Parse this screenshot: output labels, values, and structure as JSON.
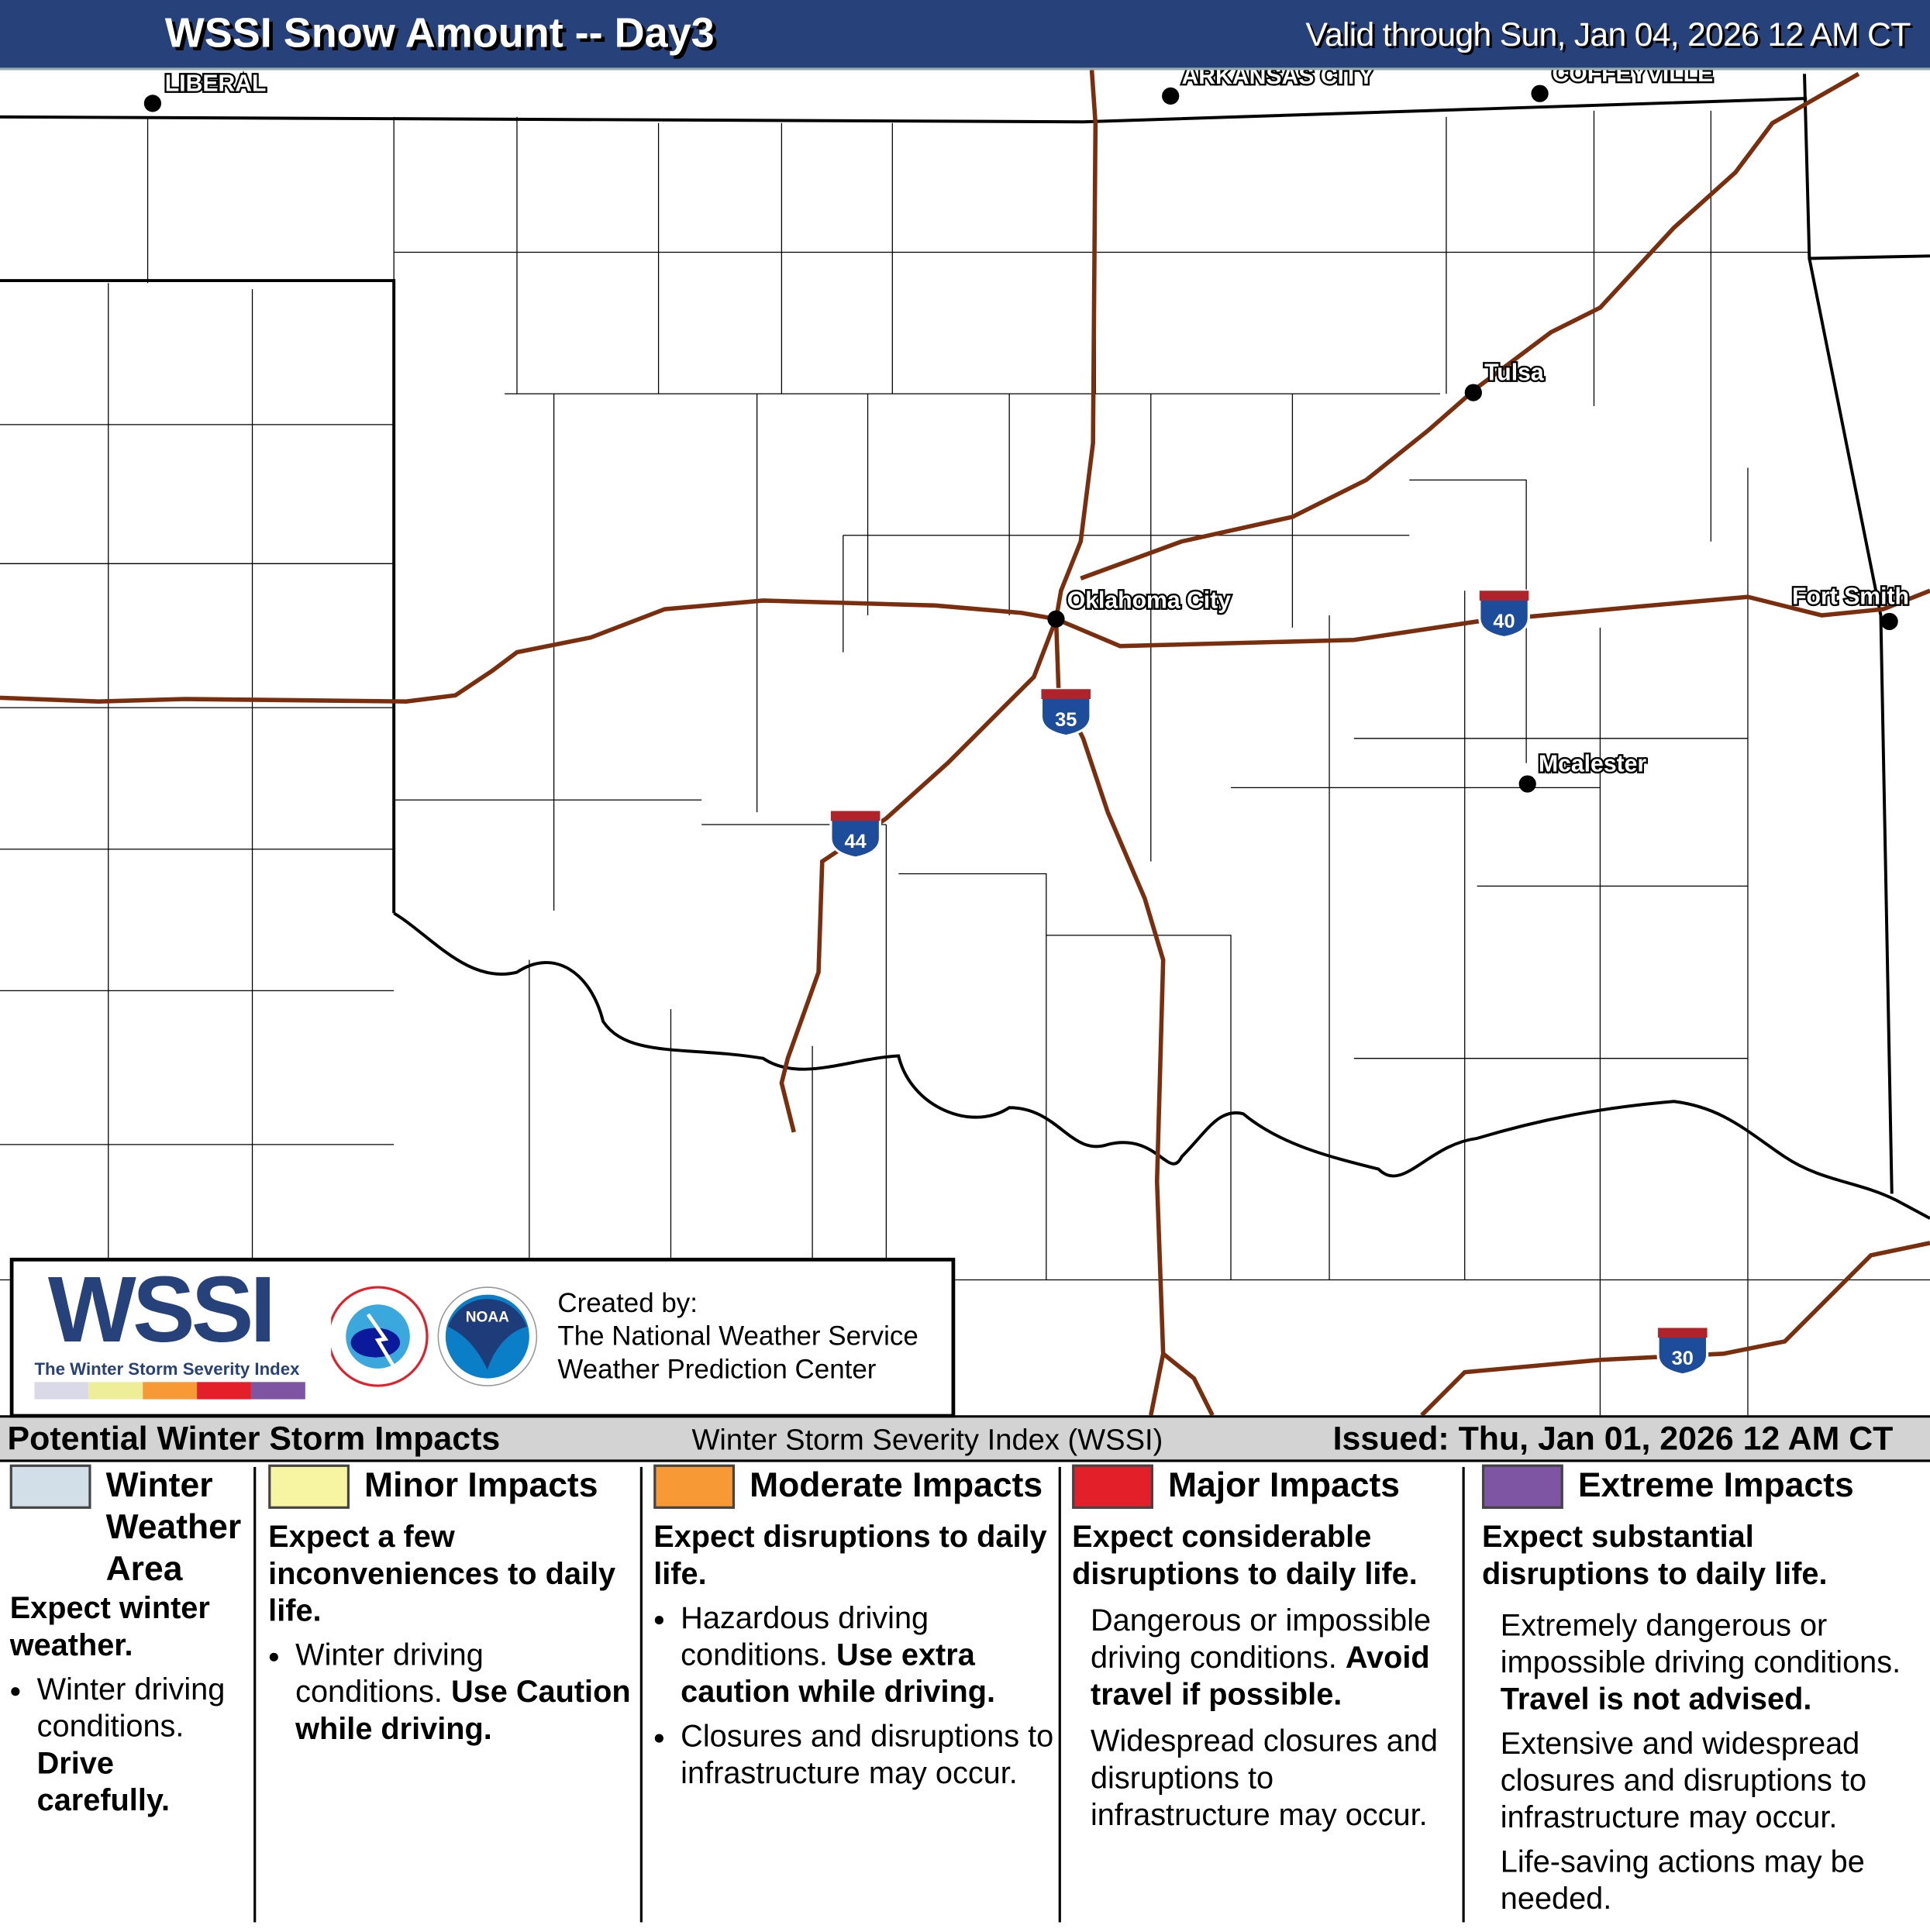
{
  "header": {
    "title": "WSSI Snow Amount -- Day3",
    "valid": "Valid through Sun, Jan 04, 2026 12 AM CT"
  },
  "map": {
    "cities": [
      "LIBERAL",
      "ARKANSAS CITY",
      "COFFEYVILLE",
      "Tulsa",
      "Oklahoma City",
      "Fort Smith",
      "Mcalester"
    ],
    "interstates": [
      "40",
      "35",
      "44",
      "30"
    ],
    "colors": {
      "interstate": "#7a2e0e",
      "shield_blue": "#1d4c9a",
      "shield_red": "#b0232a"
    }
  },
  "logo": {
    "wordmark": "WSSI",
    "tagline": "The Winter Storm Severity Index",
    "nws": "NATIONAL WEATHER SERVICE",
    "noaa": "NOAA",
    "created_by": "Created by:",
    "org1": "The National Weather Service",
    "org2": "Weather Prediction Center",
    "scale_colors": [
      "#d9d9e8",
      "#eeee99",
      "#f79a35",
      "#e3202a",
      "#7d55a3"
    ]
  },
  "panel": {
    "title": "Potential Winter Storm Impacts",
    "subtitle": "Winter Storm Severity Index (WSSI)",
    "issued": "Issued: Thu, Jan 01, 2026 12 AM CT",
    "categories": [
      {
        "name": "Winter Weather Area",
        "color": "#d3dfe8",
        "summary": "Expect winter weather.",
        "b1": "Winter driving conditions.",
        "b1b": "Drive carefully."
      },
      {
        "name": "Minor Impacts",
        "color": "#f8f5a2",
        "summary": "Expect a few inconveniences to daily life.",
        "b1": "Winter driving conditions.",
        "b1b": "Use Caution while driving."
      },
      {
        "name": "Moderate Impacts",
        "color": "#f79a35",
        "summary": "Expect disruptions to daily life.",
        "b1": "Hazardous driving conditions.",
        "b1b": "Use extra caution while driving.",
        "b2": "Closures and disruptions to infrastructure may occur."
      },
      {
        "name": "Major Impacts",
        "color": "#e3202a",
        "summary": "Expect considerable disruptions to daily life.",
        "b1": "Dangerous or impossible driving conditions.",
        "b1b": "Avoid travel if possible.",
        "b2": "Widespread closures and disruptions to infrastructure may occur."
      },
      {
        "name": "Extreme Impacts",
        "color": "#7d55a3",
        "summary": "Expect substantial disruptions to daily life.",
        "b1": "Extremely dangerous or impossible driving conditions.",
        "b1b": "Travel is not advised.",
        "b2": "Extensive and widespread closures and disruptions to infrastructure may occur.",
        "b3": "Life-saving actions may be needed."
      }
    ]
  }
}
